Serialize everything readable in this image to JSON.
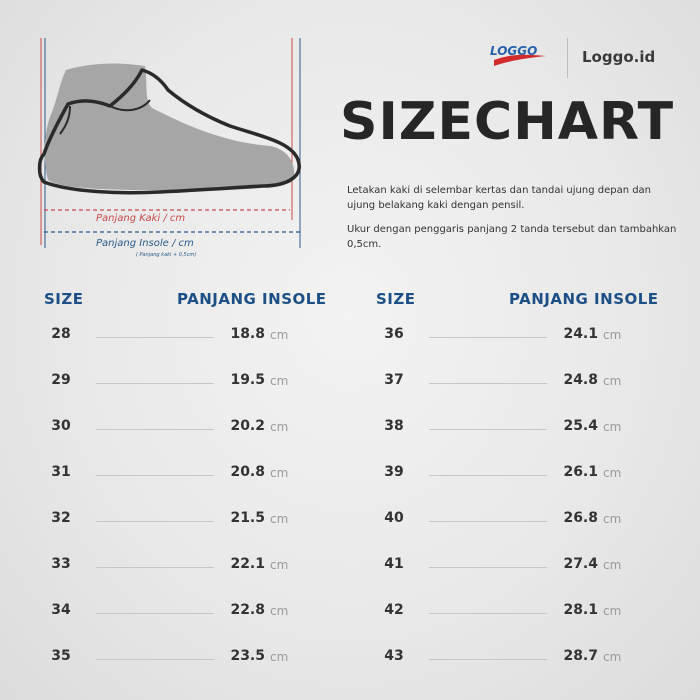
{
  "brand": {
    "logo_text": "LOGGO",
    "name": "Loggo.id",
    "colors": {
      "blue": "#2660a8",
      "red": "#d12b2b"
    }
  },
  "title": "SIZECHART",
  "instructions": [
    "Letakan kaki di selembar kertas dan tandai ujung  depan dan ujung belakang kaki dengan pensil.",
    "Ukur dengan penggaris panjang 2 tanda tersebut dan tambahkan 0,5cm."
  ],
  "diagram": {
    "foot_label": "Panjang Kaki / cm",
    "insole_label": "Panjang Insole / cm",
    "insole_note": "( Panjang kaki + 0,5cm)",
    "colors": {
      "foot": "#c94a4a",
      "insole": "#2a5a8a",
      "shoe_fill": "#a6a6a6",
      "shoe_outline": "#2a2a2a"
    }
  },
  "table": {
    "headers": {
      "size": "SIZE",
      "insole": "PANJANG INSOLE"
    },
    "unit": "cm",
    "left": [
      {
        "size": "28",
        "insole": "18.8"
      },
      {
        "size": "29",
        "insole": "19.5"
      },
      {
        "size": "30",
        "insole": "20.2"
      },
      {
        "size": "31",
        "insole": "20.8"
      },
      {
        "size": "32",
        "insole": "21.5"
      },
      {
        "size": "33",
        "insole": "22.1"
      },
      {
        "size": "34",
        "insole": "22.8"
      },
      {
        "size": "35",
        "insole": "23.5"
      }
    ],
    "right": [
      {
        "size": "36",
        "insole": "24.1"
      },
      {
        "size": "37",
        "insole": "24.8"
      },
      {
        "size": "38",
        "insole": "25.4"
      },
      {
        "size": "39",
        "insole": "26.1"
      },
      {
        "size": "40",
        "insole": "26.8"
      },
      {
        "size": "41",
        "insole": "27.4"
      },
      {
        "size": "42",
        "insole": "28.1"
      },
      {
        "size": "43",
        "insole": "28.7"
      }
    ]
  }
}
